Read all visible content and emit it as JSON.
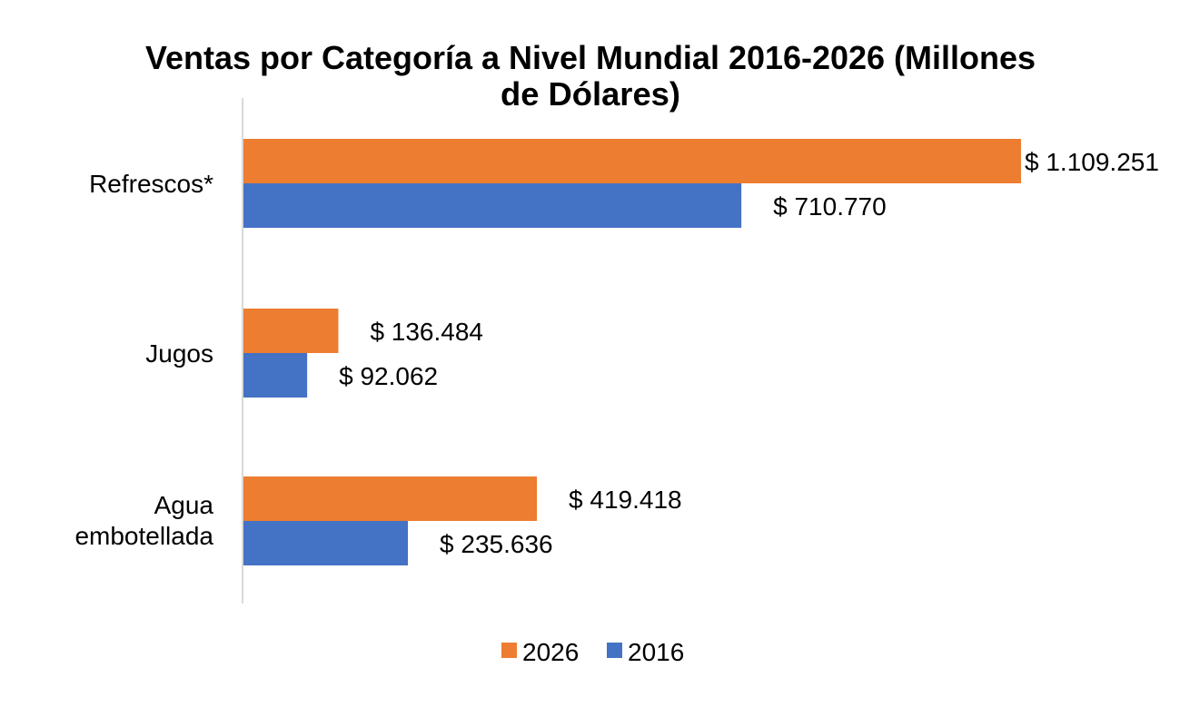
{
  "chart_data": {
    "type": "bar",
    "orientation": "horizontal",
    "title": "Ventas por Categoría a Nivel Mundial 2016-2026 (Millones de Dólares)",
    "categories": [
      "Refrescos*",
      "Jugos",
      "Agua embotellada"
    ],
    "series": [
      {
        "name": "2026",
        "color": "#ED7D31",
        "values": [
          1109251,
          136484,
          419418
        ],
        "labels": [
          "$ 1.109.251",
          "$ 136.484",
          "$ 419.418"
        ]
      },
      {
        "name": "2016",
        "color": "#4472C4",
        "values": [
          710770,
          92062,
          235636
        ],
        "labels": [
          "$ 710.770",
          "$ 92.062",
          "$ 235.636"
        ]
      }
    ],
    "xlim": [
      0,
      1109251
    ],
    "x_axis_visible": false,
    "grid": false,
    "legend": "bottom",
    "axis_color": "#D9D9D9"
  }
}
